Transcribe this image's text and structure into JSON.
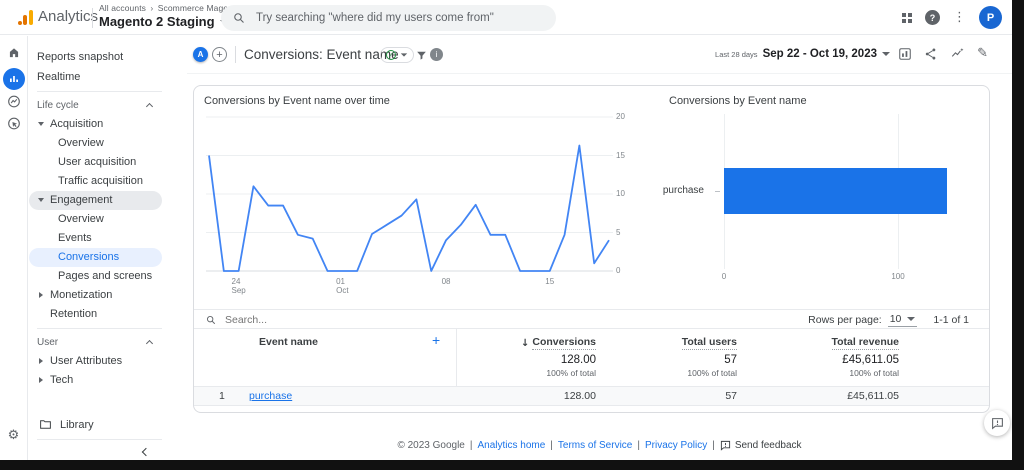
{
  "icons": {
    "kebab": "⋮",
    "gear": "⚙",
    "pencil": "✎",
    "sort_desc": "↓",
    "plus": "+",
    "help": "?",
    "info": "i",
    "check": "✓",
    "breadcrumb_sep": "›"
  },
  "app_bar": {
    "brand": "Analytics",
    "breadcrumb_root": "All accounts",
    "breadcrumb_account": "Scommerce Mage",
    "property_name": "Magento 2 Staging",
    "search_placeholder": "Try searching \"where did my users come from\"",
    "avatar_initial": "P"
  },
  "report_header": {
    "comparison_chip": "A",
    "title": "Conversions: Event name",
    "date_range_label": "Last 28 days",
    "date_range": "Sep 22 - Oct 19, 2023"
  },
  "sidebar": {
    "items": [
      {
        "label": "Reports snapshot"
      },
      {
        "label": "Realtime"
      },
      {
        "label": "Life cycle"
      },
      {
        "label": "Acquisition"
      },
      {
        "label": "Overview"
      },
      {
        "label": "User acquisition"
      },
      {
        "label": "Traffic acquisition"
      },
      {
        "label": "Engagement"
      },
      {
        "label": "Overview"
      },
      {
        "label": "Events"
      },
      {
        "label": "Conversions"
      },
      {
        "label": "Pages and screens"
      },
      {
        "label": "Monetization"
      },
      {
        "label": "Retention"
      },
      {
        "label": "User"
      },
      {
        "label": "User Attributes"
      },
      {
        "label": "Tech"
      },
      {
        "label": "Library"
      }
    ]
  },
  "chart_data": [
    {
      "type": "line",
      "title": "Conversions by Event name over time",
      "x": [
        "Sep 22",
        "Sep 23",
        "Sep 24",
        "Sep 25",
        "Sep 26",
        "Sep 27",
        "Sep 28",
        "Sep 29",
        "Sep 30",
        "Oct 1",
        "Oct 2",
        "Oct 3",
        "Oct 4",
        "Oct 5",
        "Oct 6",
        "Oct 7",
        "Oct 8",
        "Oct 9",
        "Oct 10",
        "Oct 11",
        "Oct 12",
        "Oct 13",
        "Oct 14",
        "Oct 15",
        "Oct 16",
        "Oct 17",
        "Oct 18",
        "Oct 19"
      ],
      "values": [
        15,
        0,
        0,
        11,
        8.5,
        8.5,
        4.7,
        4.2,
        0,
        0,
        0,
        4.8,
        6,
        7.2,
        9.3,
        0,
        4,
        6,
        8.6,
        4.7,
        4.7,
        0,
        0,
        0,
        4.7,
        16.3,
        1,
        4
      ],
      "ylim": [
        0,
        20
      ],
      "yticks": [
        0,
        5,
        10,
        15,
        20
      ],
      "yaxis_side": "right",
      "grid": true,
      "xticks": [
        {
          "index": 2,
          "line1": "24",
          "line2": "Sep"
        },
        {
          "index": 9,
          "line1": "01",
          "line2": "Oct"
        },
        {
          "index": 16,
          "line1": "08",
          "line2": ""
        },
        {
          "index": 23,
          "line1": "15",
          "line2": ""
        }
      ],
      "color": "#4285f4"
    },
    {
      "type": "bar",
      "orientation": "horizontal",
      "title": "Conversions by Event name",
      "categories": [
        "purchase"
      ],
      "values": [
        128
      ],
      "xticks": [
        0,
        100
      ],
      "xlim": [
        0,
        148
      ],
      "grid": true,
      "color": "#1a73e8"
    }
  ],
  "table": {
    "search_placeholder": "Search...",
    "rows_per_page_label": "Rows per page:",
    "rows_per_page_value": "10",
    "pagination": "1-1 of 1",
    "columns": {
      "event_name": "Event name",
      "conversions": "Conversions",
      "total_users": "Total users",
      "total_revenue": "Total revenue"
    },
    "totals": {
      "conversions": "128.00",
      "conversions_pct": "100% of total",
      "total_users": "57",
      "total_users_pct": "100% of total",
      "total_revenue": "£45,611.05",
      "total_revenue_pct": "100% of total"
    },
    "rows": [
      {
        "rank": "1",
        "event_name": "purchase",
        "conversions": "128.00",
        "total_users": "57",
        "total_revenue": "£45,611.05"
      }
    ]
  },
  "footer": {
    "copyright": "© 2023 Google",
    "sep": "|",
    "link_analytics_home": "Analytics home",
    "link_terms": "Terms of Service",
    "link_privacy": "Privacy Policy",
    "send_feedback": "Send feedback"
  }
}
